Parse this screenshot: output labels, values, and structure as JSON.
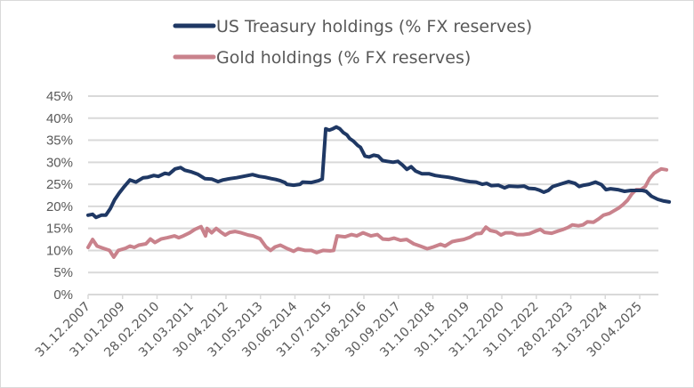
{
  "chart_data": {
    "type": "line",
    "title": "",
    "xlabel": "",
    "ylabel": "",
    "ylim": [
      0,
      45
    ],
    "y_tick_step": 5,
    "y_tick_labels": [
      "0%",
      "5%",
      "10%",
      "15%",
      "20%",
      "25%",
      "30%",
      "35%",
      "40%",
      "45%"
    ],
    "grid": "horizontal",
    "legend": "top-center",
    "x_start": "2007-12",
    "x_end": "2025-11",
    "x_tick_labels": [
      "31.12.2007",
      "31.01.2009",
      "28.02.2010",
      "31.03.2011",
      "30.04.2012",
      "31.05.2013",
      "30.06.2014",
      "31.07.2015",
      "31.08.2016",
      "30.09.2017",
      "31.10.2018",
      "30.11.2019",
      "31.12.2020",
      "31.01.2022",
      "28.02.2023",
      "31.03.2024",
      "30.04.2025"
    ],
    "x_tick_months": [
      0,
      13,
      26,
      39,
      52,
      65,
      78,
      91,
      104,
      117,
      130,
      143,
      156,
      169,
      182,
      195,
      208
    ],
    "series": [
      {
        "name": "US Treasury holdings (% FX reserves)",
        "color": "#1f3864",
        "points": [
          [
            0,
            18.0
          ],
          [
            1.7,
            18.2
          ],
          [
            3,
            17.5
          ],
          [
            5,
            18.0
          ],
          [
            6.7,
            18.0
          ],
          [
            8.4,
            19.5
          ],
          [
            10,
            21.5
          ],
          [
            11.7,
            23.0
          ],
          [
            13.4,
            24.3
          ],
          [
            15.8,
            26.0
          ],
          [
            18,
            25.5
          ],
          [
            20.8,
            26.5
          ],
          [
            22.5,
            26.6
          ],
          [
            24.8,
            27.0
          ],
          [
            26.5,
            26.8
          ],
          [
            29,
            27.5
          ],
          [
            30.5,
            27.3
          ],
          [
            32.8,
            28.5
          ],
          [
            34.9,
            28.8
          ],
          [
            36.5,
            28.2
          ],
          [
            39,
            27.8
          ],
          [
            41.3,
            27.3
          ],
          [
            44,
            26.3
          ],
          [
            46.6,
            26.2
          ],
          [
            49,
            25.6
          ],
          [
            50.9,
            26.0
          ],
          [
            53.6,
            26.3
          ],
          [
            56,
            26.5
          ],
          [
            57.7,
            26.7
          ],
          [
            62,
            27.2
          ],
          [
            64.5,
            26.8
          ],
          [
            66.8,
            26.6
          ],
          [
            69,
            26.3
          ],
          [
            70.8,
            26.1
          ],
          [
            72.5,
            25.8
          ],
          [
            74.2,
            25.4
          ],
          [
            74.9,
            25.0
          ],
          [
            77.5,
            24.8
          ],
          [
            79.9,
            25.0
          ],
          [
            80.9,
            25.5
          ],
          [
            84.2,
            25.4
          ],
          [
            86.9,
            25.8
          ],
          [
            88.3,
            26.2
          ],
          [
            89.6,
            37.6
          ],
          [
            90.9,
            37.3
          ],
          [
            92.3,
            37.6
          ],
          [
            93.6,
            38.0
          ],
          [
            94.9,
            37.6
          ],
          [
            96.3,
            36.7
          ],
          [
            97.6,
            36.2
          ],
          [
            98.6,
            35.4
          ],
          [
            100,
            34.8
          ],
          [
            101.7,
            33.8
          ],
          [
            102.7,
            33.4
          ],
          [
            104.4,
            31.4
          ],
          [
            106,
            31.2
          ],
          [
            107.7,
            31.6
          ],
          [
            109.4,
            31.4
          ],
          [
            111,
            30.4
          ],
          [
            112.8,
            30.2
          ],
          [
            115,
            30.0
          ],
          [
            116.8,
            30.2
          ],
          [
            118.5,
            29.4
          ],
          [
            120.2,
            28.4
          ],
          [
            121.8,
            29.0
          ],
          [
            123.5,
            28.0
          ],
          [
            125.8,
            27.4
          ],
          [
            128.5,
            27.4
          ],
          [
            130.9,
            27.0
          ],
          [
            133.2,
            26.8
          ],
          [
            135.9,
            26.6
          ],
          [
            137.6,
            26.4
          ],
          [
            139.9,
            26.1
          ],
          [
            142,
            25.8
          ],
          [
            144,
            25.6
          ],
          [
            146.3,
            25.5
          ],
          [
            148.7,
            25.0
          ],
          [
            150.3,
            25.2
          ],
          [
            152,
            24.7
          ],
          [
            154.7,
            24.8
          ],
          [
            157,
            24.2
          ],
          [
            158.7,
            24.6
          ],
          [
            162,
            24.5
          ],
          [
            164.4,
            24.6
          ],
          [
            166.1,
            24.1
          ],
          [
            168.5,
            24.0
          ],
          [
            170.1,
            23.7
          ],
          [
            171.8,
            23.2
          ],
          [
            173.5,
            23.6
          ],
          [
            175.2,
            24.5
          ],
          [
            176.8,
            24.8
          ],
          [
            179.5,
            25.3
          ],
          [
            181.2,
            25.6
          ],
          [
            183.6,
            25.2
          ],
          [
            185.2,
            24.5
          ],
          [
            186.9,
            24.8
          ],
          [
            188.9,
            25.0
          ],
          [
            191.3,
            25.5
          ],
          [
            193.6,
            24.9
          ],
          [
            195.3,
            23.8
          ],
          [
            197,
            24.0
          ],
          [
            199.7,
            23.8
          ],
          [
            202.3,
            23.4
          ],
          [
            204.7,
            23.6
          ],
          [
            206.4,
            23.6
          ],
          [
            209,
            23.6
          ],
          [
            210.4,
            23.4
          ],
          [
            212.4,
            22.3
          ],
          [
            214.8,
            21.6
          ],
          [
            217.1,
            21.2
          ],
          [
            219.1,
            21.0
          ]
        ]
      },
      {
        "name": "Gold holdings (% FX reserves)",
        "color": "#c9828c",
        "points": [
          [
            0,
            10.7
          ],
          [
            1.7,
            12.5
          ],
          [
            3.4,
            11.0
          ],
          [
            5.7,
            10.5
          ],
          [
            8.1,
            10.0
          ],
          [
            9.7,
            8.5
          ],
          [
            11.4,
            10.0
          ],
          [
            14.1,
            10.5
          ],
          [
            15.8,
            11.0
          ],
          [
            17.4,
            10.7
          ],
          [
            19.1,
            11.2
          ],
          [
            21.8,
            11.5
          ],
          [
            23.5,
            12.6
          ],
          [
            25.2,
            11.8
          ],
          [
            27.5,
            12.6
          ],
          [
            29.9,
            12.9
          ],
          [
            32.6,
            13.3
          ],
          [
            34.2,
            12.9
          ],
          [
            35.9,
            13.3
          ],
          [
            38.3,
            14.0
          ],
          [
            40.3,
            14.8
          ],
          [
            42.6,
            15.4
          ],
          [
            44.3,
            13.3
          ],
          [
            44.9,
            15.0
          ],
          [
            46.6,
            14.0
          ],
          [
            48.3,
            15.0
          ],
          [
            50,
            14.2
          ],
          [
            51.7,
            13.5
          ],
          [
            53.4,
            14.1
          ],
          [
            55.4,
            14.3
          ],
          [
            57.7,
            14.0
          ],
          [
            60.4,
            13.5
          ],
          [
            62.2,
            13.3
          ],
          [
            64.8,
            12.7
          ],
          [
            67.1,
            10.8
          ],
          [
            68.8,
            10.0
          ],
          [
            70.5,
            10.8
          ],
          [
            72.5,
            11.2
          ],
          [
            75.2,
            10.4
          ],
          [
            77.5,
            9.8
          ],
          [
            79.2,
            10.4
          ],
          [
            81.9,
            10.0
          ],
          [
            84.2,
            10.0
          ],
          [
            86.2,
            9.5
          ],
          [
            88.6,
            10.0
          ],
          [
            91.3,
            9.9
          ],
          [
            92.6,
            10.0
          ],
          [
            93.9,
            13.3
          ],
          [
            96.9,
            13.1
          ],
          [
            99.3,
            13.6
          ],
          [
            101.3,
            13.3
          ],
          [
            103.7,
            14.0
          ],
          [
            106.7,
            13.3
          ],
          [
            109.1,
            13.6
          ],
          [
            111.1,
            12.6
          ],
          [
            113.4,
            12.5
          ],
          [
            115.4,
            12.8
          ],
          [
            117.8,
            12.3
          ],
          [
            120.1,
            12.5
          ],
          [
            122.8,
            11.5
          ],
          [
            125.2,
            11.0
          ],
          [
            127.9,
            10.4
          ],
          [
            130.2,
            10.8
          ],
          [
            132.9,
            11.4
          ],
          [
            134.6,
            11.0
          ],
          [
            137.3,
            12.0
          ],
          [
            138.9,
            12.2
          ],
          [
            141.6,
            12.5
          ],
          [
            144,
            13.0
          ],
          [
            146.3,
            13.8
          ],
          [
            148.3,
            13.9
          ],
          [
            150,
            15.3
          ],
          [
            151.7,
            14.5
          ],
          [
            154,
            14.2
          ],
          [
            155.7,
            13.5
          ],
          [
            157.4,
            14.0
          ],
          [
            159.7,
            14.0
          ],
          [
            161.7,
            13.6
          ],
          [
            164.1,
            13.6
          ],
          [
            166.4,
            13.8
          ],
          [
            168.8,
            14.4
          ],
          [
            170.5,
            14.8
          ],
          [
            172.1,
            14.1
          ],
          [
            174.8,
            13.9
          ],
          [
            177.2,
            14.4
          ],
          [
            179.2,
            14.8
          ],
          [
            180.9,
            15.2
          ],
          [
            182.6,
            15.8
          ],
          [
            184.9,
            15.6
          ],
          [
            186.6,
            15.8
          ],
          [
            188.3,
            16.5
          ],
          [
            190.6,
            16.4
          ],
          [
            192.6,
            17.2
          ],
          [
            194.3,
            18.0
          ],
          [
            196.6,
            18.4
          ],
          [
            198.3,
            19.0
          ],
          [
            200,
            19.6
          ],
          [
            201.7,
            20.4
          ],
          [
            203.4,
            21.4
          ],
          [
            205,
            22.8
          ],
          [
            206.7,
            23.8
          ],
          [
            208.4,
            23.8
          ],
          [
            210.1,
            24.5
          ],
          [
            211.7,
            26.3
          ],
          [
            213.4,
            27.5
          ],
          [
            216.1,
            28.5
          ],
          [
            218.1,
            28.3
          ]
        ]
      }
    ]
  }
}
